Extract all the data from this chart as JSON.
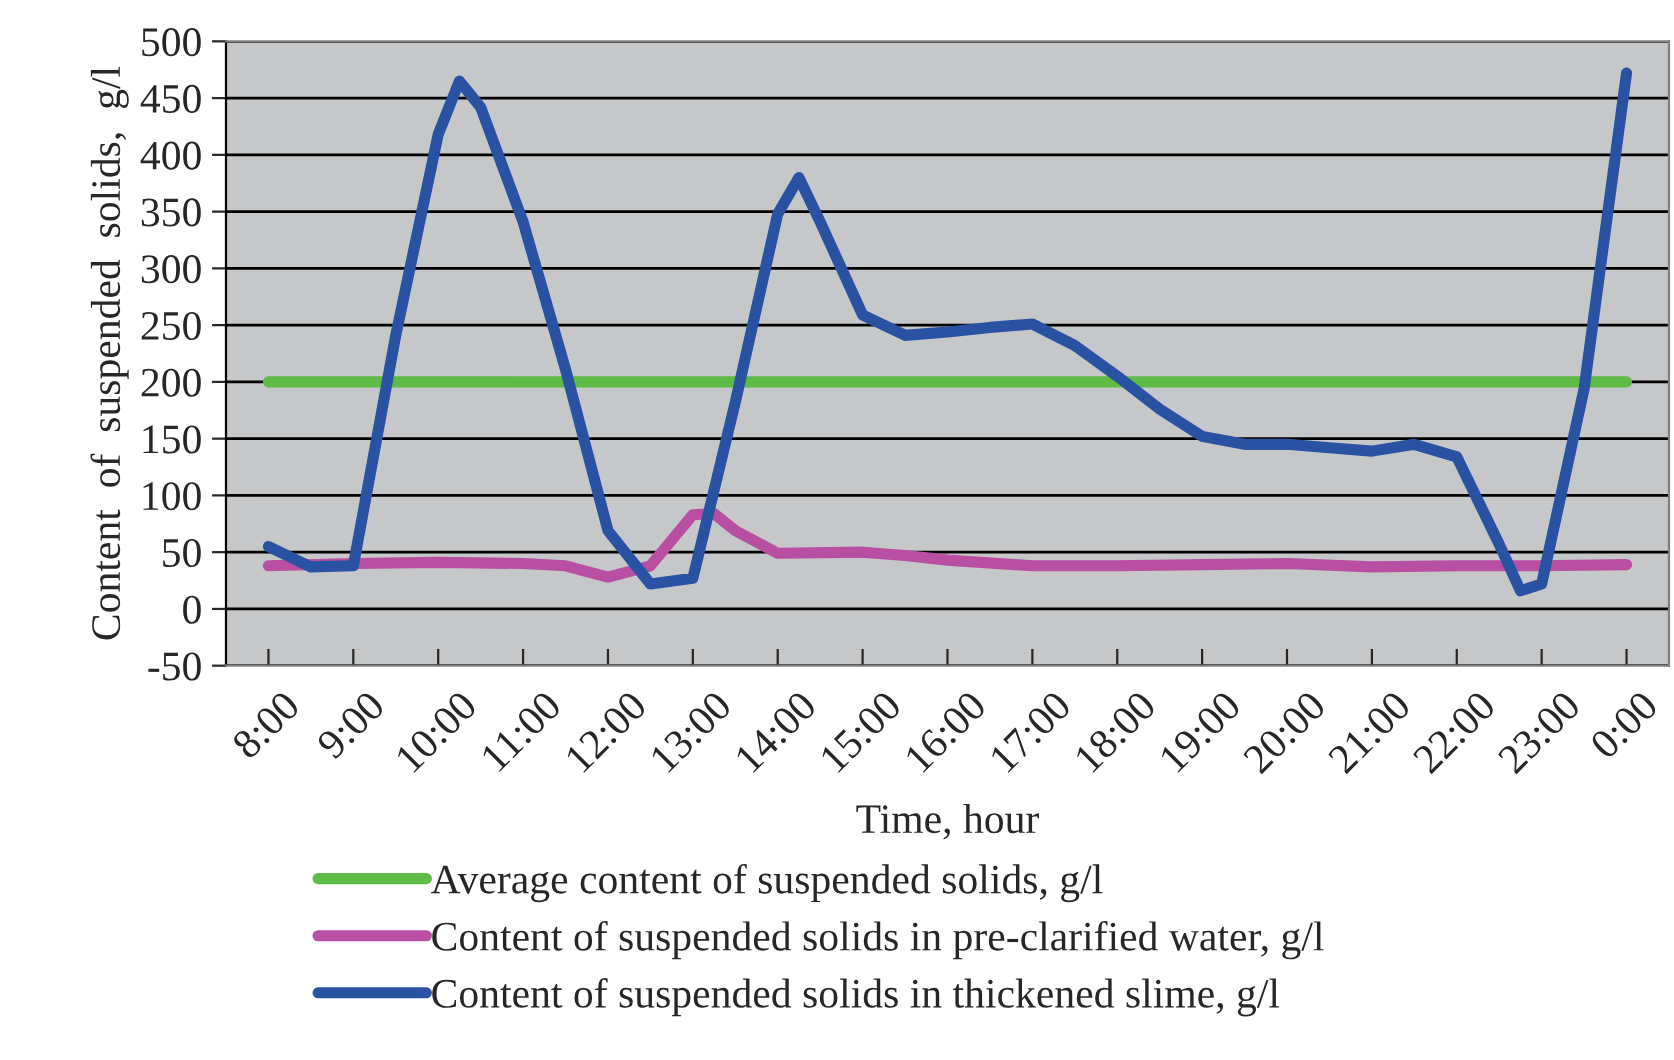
{
  "chart_data": {
    "type": "line",
    "xlabel": "Time, hour",
    "ylabel": "Content  of  suspended  solids,  g/l",
    "xlim": [
      7.5,
      24.5
    ],
    "ylim": [
      -50,
      500
    ],
    "xticks": [
      {
        "value": 8,
        "label": "8:00"
      },
      {
        "value": 9,
        "label": "9:00"
      },
      {
        "value": 10,
        "label": "10:00"
      },
      {
        "value": 11,
        "label": "11:00"
      },
      {
        "value": 12,
        "label": "12:00"
      },
      {
        "value": 13,
        "label": "13:00"
      },
      {
        "value": 14,
        "label": "14:00"
      },
      {
        "value": 15,
        "label": "15:00"
      },
      {
        "value": 16,
        "label": "16:00"
      },
      {
        "value": 17,
        "label": "17:00"
      },
      {
        "value": 18,
        "label": "18:00"
      },
      {
        "value": 19,
        "label": "19:00"
      },
      {
        "value": 20,
        "label": "20:00"
      },
      {
        "value": 21,
        "label": "21:00"
      },
      {
        "value": 22,
        "label": "22:00"
      },
      {
        "value": 23,
        "label": "23:00"
      },
      {
        "value": 24,
        "label": "0:00"
      }
    ],
    "yticks": [
      -50,
      0,
      50,
      100,
      150,
      200,
      250,
      300,
      350,
      400,
      450,
      500
    ],
    "grid": "y",
    "legend": "bottom",
    "marker": "none",
    "line_style": "solid",
    "series": [
      {
        "name": "Average content of suspended solids, g/l",
        "color": "#5dbb46",
        "x": [
          8,
          24
        ],
        "values": [
          200,
          200
        ]
      },
      {
        "name": "Content of suspended solids in pre-clarified water, g/l",
        "color": "#b84fa3",
        "x": [
          8,
          9,
          10,
          11,
          11.5,
          12,
          12.5,
          13,
          13.25,
          13.5,
          14,
          15,
          15.5,
          16,
          17,
          18,
          19,
          20,
          21,
          22,
          23,
          24
        ],
        "values": [
          38,
          40,
          41,
          40,
          38,
          28,
          38,
          83,
          84,
          69,
          49,
          50,
          47,
          43,
          38,
          38,
          39,
          40,
          37,
          38,
          38,
          39
        ]
      },
      {
        "name": "Content of suspended solids in thickened slime, g/l",
        "color": "#2a52a3",
        "x": [
          8,
          8.5,
          9,
          9.5,
          10,
          10.25,
          10.5,
          11,
          11.5,
          12,
          12.5,
          13,
          13.5,
          14,
          14.25,
          14.5,
          15,
          15.5,
          16,
          16.5,
          17,
          17.5,
          18,
          18.5,
          19,
          19.5,
          20,
          20.5,
          21,
          21.5,
          22,
          22.5,
          22.75,
          23,
          23.5,
          24
        ],
        "values": [
          55,
          37,
          38,
          241,
          418,
          465,
          442,
          341,
          211,
          69,
          22,
          27,
          182,
          348,
          380,
          341,
          259,
          241,
          244,
          248,
          251,
          232,
          205,
          176,
          152,
          145,
          145,
          142,
          139,
          145,
          134,
          57,
          16,
          22,
          194,
          472
        ]
      }
    ]
  }
}
